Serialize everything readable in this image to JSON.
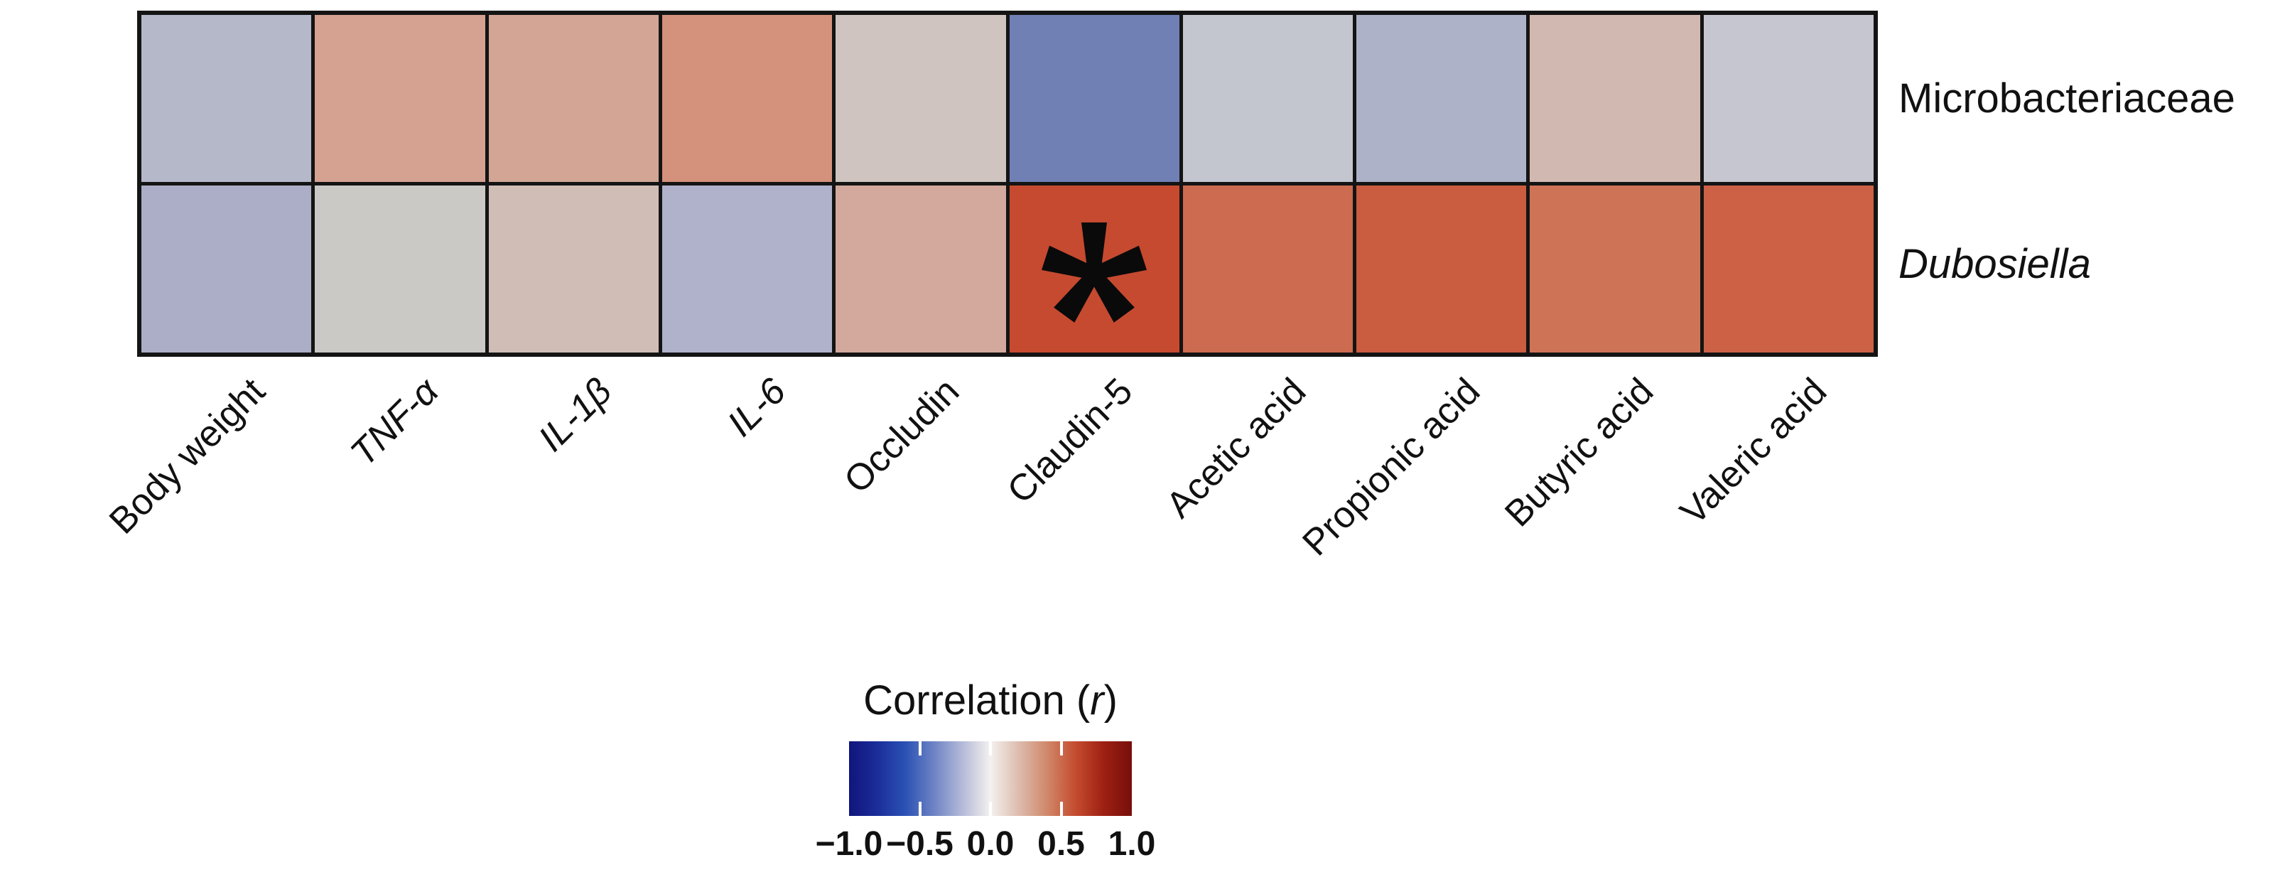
{
  "chart_data": {
    "type": "heatmap",
    "rows": [
      {
        "label": "Microbacteriaceae",
        "italic": false,
        "cells": [
          {
            "color": "#b5b8c9",
            "estimated_r": -0.2,
            "sig": false
          },
          {
            "color": "#d5a292",
            "estimated_r": 0.35,
            "sig": false
          },
          {
            "color": "#d2a595",
            "estimated_r": 0.32,
            "sig": false
          },
          {
            "color": "#d4917b",
            "estimated_r": 0.45,
            "sig": false
          },
          {
            "color": "#cfc4bf",
            "estimated_r": 0.1,
            "sig": false
          },
          {
            "color": "#7080b4",
            "estimated_r": -0.55,
            "sig": false
          },
          {
            "color": "#c3c5cf",
            "estimated_r": -0.12,
            "sig": false
          },
          {
            "color": "#adb2c8",
            "estimated_r": -0.25,
            "sig": false
          },
          {
            "color": "#d1b8b0",
            "estimated_r": 0.2,
            "sig": false
          },
          {
            "color": "#c5c6cf",
            "estimated_r": -0.1,
            "sig": false
          }
        ]
      },
      {
        "label": "Dubosiella",
        "italic": true,
        "cells": [
          {
            "color": "#abaec6",
            "estimated_r": -0.28,
            "sig": false
          },
          {
            "color": "#cbc9c6",
            "estimated_r": 0.02,
            "sig": false
          },
          {
            "color": "#d0bdb6",
            "estimated_r": 0.15,
            "sig": false
          },
          {
            "color": "#b0b2cb",
            "estimated_r": -0.25,
            "sig": false
          },
          {
            "color": "#d2a99c",
            "estimated_r": 0.3,
            "sig": false
          },
          {
            "color": "#c64a30",
            "estimated_r": 0.75,
            "sig": true
          },
          {
            "color": "#cd6b50",
            "estimated_r": 0.6,
            "sig": false
          },
          {
            "color": "#ca5c40",
            "estimated_r": 0.65,
            "sig": false
          },
          {
            "color": "#cf7357",
            "estimated_r": 0.52,
            "sig": false
          },
          {
            "color": "#cc6146",
            "estimated_r": 0.62,
            "sig": false
          }
        ]
      }
    ],
    "columns": [
      {
        "label": "Body weight",
        "italic": false
      },
      {
        "label": "TNF-α",
        "italic": true
      },
      {
        "label": "IL-1β",
        "italic": true
      },
      {
        "label": "IL-6",
        "italic": true
      },
      {
        "label": "Occludin",
        "italic": false
      },
      {
        "label": "Claudin-5",
        "italic": false
      },
      {
        "label": "Acetic acid",
        "italic": false
      },
      {
        "label": "Propionic acid",
        "italic": false
      },
      {
        "label": "Butyric acid",
        "italic": false
      },
      {
        "label": "Valeric acid",
        "italic": false
      }
    ],
    "significance_marker": "*",
    "colorbar": {
      "title_prefix": "Correlation (",
      "title_italic": "r",
      "title_suffix": ")",
      "range": [
        -1.0,
        1.0
      ],
      "ticks": [
        "−1.0",
        "−0.5",
        "0.0",
        "0.5",
        "1.0"
      ],
      "tick_values": [
        -1.0,
        -0.5,
        0.0,
        0.5,
        1.0
      ],
      "gradient": [
        "#10157c",
        "#1b2d9a",
        "#2b52b5",
        "#6e83c4",
        "#b4bad8",
        "#f4f1ef",
        "#ddbcae",
        "#d0886a",
        "#c54c2f",
        "#9e2013",
        "#770f0b"
      ]
    },
    "grid_color": "#141414",
    "background": "#ffffff"
  }
}
